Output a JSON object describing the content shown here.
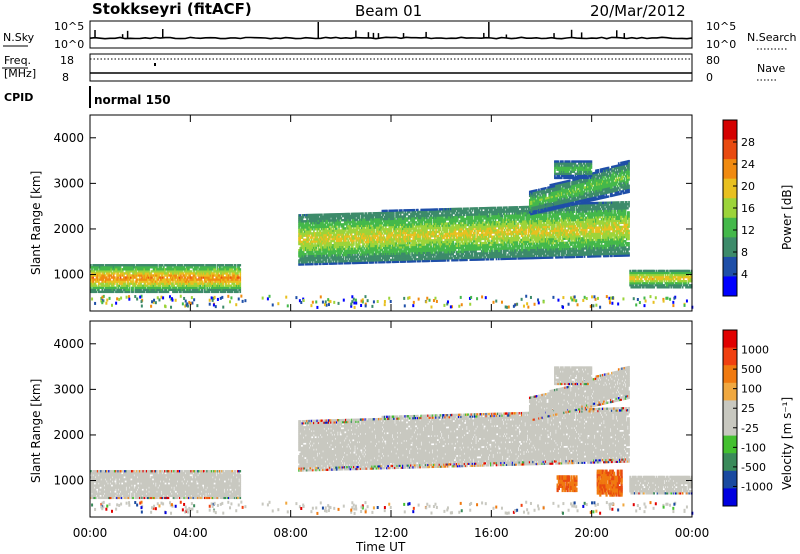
{
  "header": {
    "station": "Stokkseyri (fitACF)",
    "beam": "Beam 01",
    "date": "20/Mar/2012"
  },
  "panels": {
    "nsky": {
      "label": "N.Sky",
      "ticks": [
        "10^5",
        "10^0"
      ],
      "right_label": "N.Search",
      "right_ticks": [
        "10^5",
        "10^0"
      ]
    },
    "freq": {
      "label_line1": "Freq.",
      "label_line2": "[MHz]",
      "ticks": [
        "18",
        "8"
      ],
      "right_label": "Nave",
      "right_ticks": [
        "80",
        "0"
      ]
    },
    "cpid": {
      "label": "CPID",
      "text": "normal 150"
    }
  },
  "colors": {
    "power": [
      "#0000ff",
      "#1f4fa8",
      "#3d8b6a",
      "#44b84a",
      "#9cd43a",
      "#e8c020",
      "#f08a10",
      "#e84a10",
      "#d40000"
    ],
    "velocity": [
      "#e00000",
      "#f04010",
      "#f07a10",
      "#f0a840",
      "#c8c8c0",
      "#c8c8c0",
      "#44c030",
      "#3a8a5a",
      "#1a4aa0",
      "#0000e0"
    ]
  },
  "chart_data": [
    {
      "type": "heatmap",
      "name": "power",
      "xlabel": "",
      "ylabel": "Slant Range [km]",
      "xlim": [
        "00:00",
        "24:00"
      ],
      "ylim": [
        200,
        4500
      ],
      "yticks": [
        1000,
        2000,
        3000,
        4000
      ],
      "colorbar": {
        "label": "Power [dB]",
        "ticks": [
          4,
          8,
          12,
          16,
          20,
          24,
          28
        ]
      },
      "echo_bands": [
        {
          "t_start": 0.0,
          "t_end": 6.0,
          "range_low": 600,
          "range_high": 1200,
          "peak_db": 28
        },
        {
          "t_start": 8.3,
          "t_end": 21.5,
          "range_low": 1200,
          "range_high": 2300,
          "peak_db": 22
        },
        {
          "t_start": 17.5,
          "t_end": 21.5,
          "range_low": 2300,
          "range_high": 2800,
          "peak_db": 16
        },
        {
          "t_start": 18.5,
          "t_end": 20.0,
          "range_low": 3100,
          "range_high": 3500,
          "peak_db": 14
        },
        {
          "t_start": 21.5,
          "t_end": 24.0,
          "range_low": 700,
          "range_high": 1100,
          "peak_db": 24
        }
      ]
    },
    {
      "type": "heatmap",
      "name": "velocity",
      "xlabel": "Time UT",
      "ylabel": "Slant Range [km]",
      "xlim": [
        "00:00",
        "24:00"
      ],
      "ylim": [
        200,
        4500
      ],
      "yticks": [
        1000,
        2000,
        3000,
        4000
      ],
      "xticks": [
        "00:00",
        "04:00",
        "08:00",
        "12:00",
        "16:00",
        "20:00",
        "00:00"
      ],
      "colorbar": {
        "label": "Velocity [m s⁻¹]",
        "ticks": [
          1000,
          500,
          100,
          25,
          -25,
          -100,
          -500,
          -1000
        ]
      }
    }
  ]
}
